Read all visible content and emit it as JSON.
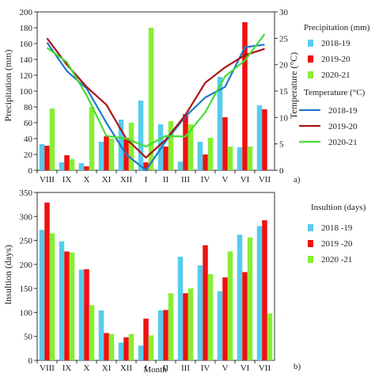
{
  "colors": {
    "c2018": "#55ccee",
    "c2019": "#ee1111",
    "c2020": "#88ee33",
    "t2018": "#2277cc",
    "t2019": "#aa1515",
    "t2020": "#44dd33"
  },
  "panel_labels": {
    "a": "a)",
    "b": "b)"
  },
  "chart_data": [
    {
      "type": "bar",
      "categories": [
        "VIII",
        "IX",
        "X",
        "XI",
        "XII",
        "I",
        "II",
        "III",
        "IV",
        "V",
        "VI",
        "VII"
      ],
      "ylabel": "Precipitation (mm)",
      "y2label": "Temperature (°C)",
      "ylim": [
        0,
        200
      ],
      "yticks": [
        "0",
        "20",
        "40",
        "60",
        "80",
        "100",
        "120",
        "140",
        "160",
        "180",
        "200"
      ],
      "y2lim": [
        0,
        30
      ],
      "y2ticks": [
        "0",
        "5",
        "10",
        "15",
        "20",
        "25",
        "30"
      ],
      "legend_precip_title": "Precipitation (mm)",
      "legend_temp_title": "Temperature (°C)",
      "series": [
        {
          "name": "2018-19",
          "values": [
            33,
            10,
            9,
            36,
            64,
            88,
            58,
            11,
            36,
            118,
            29,
            82
          ]
        },
        {
          "name": "2019-20",
          "values": [
            31,
            19,
            5,
            43,
            41,
            10,
            30,
            71,
            20,
            67,
            187,
            77
          ]
        },
        {
          "name": "2020-21",
          "values": [
            78,
            14,
            80,
            40,
            60,
            180,
            62,
            58,
            41,
            30,
            30,
            0
          ]
        }
      ],
      "lines": [
        {
          "name": "2018-19",
          "values": [
            24.2,
            18.8,
            15.5,
            9.0,
            3.0,
            0.0,
            5.5,
            10.2,
            13.8,
            15.8,
            23.3,
            23.8
          ]
        },
        {
          "name": "2019-20",
          "values": [
            25.0,
            20.0,
            15.8,
            12.4,
            6.0,
            2.4,
            5.8,
            10.5,
            16.6,
            19.5,
            21.8,
            23.0
          ]
        },
        {
          "name": "2020-21",
          "values": [
            23.2,
            20.5,
            14.2,
            6.5,
            6.0,
            4.5,
            6.5,
            6.4,
            11.0,
            17.8,
            20.8,
            25.8
          ]
        }
      ]
    },
    {
      "type": "bar",
      "categories": [
        "VIII",
        "IX",
        "X",
        "XI",
        "XII",
        "I",
        "II",
        "III",
        "IV",
        "V",
        "VI",
        "VII"
      ],
      "xlabel": "Month",
      "ylabel": "Insultion (days)",
      "ylim": [
        0,
        350
      ],
      "yticks": [
        "0",
        "50",
        "100",
        "150",
        "200",
        "250",
        "300",
        "350"
      ],
      "legend_title": "Insultion (days)",
      "series": [
        {
          "name": "2018 -19",
          "values": [
            272,
            248,
            189,
            104,
            37,
            31,
            104,
            216,
            198,
            144,
            262,
            280
          ]
        },
        {
          "name": "2019 -20",
          "values": [
            329,
            227,
            190,
            57,
            48,
            87,
            105,
            140,
            240,
            173,
            184,
            292
          ]
        },
        {
          "name": "2020 -21",
          "values": [
            265,
            225,
            115,
            55,
            55,
            52,
            140,
            150,
            180,
            227,
            256,
            98
          ]
        }
      ]
    }
  ]
}
